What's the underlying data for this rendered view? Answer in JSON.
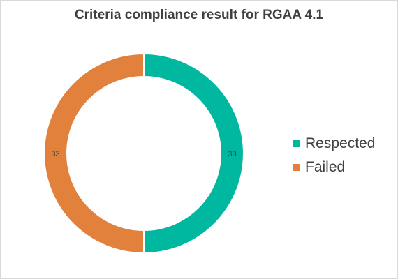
{
  "chart_data": {
    "type": "pie",
    "variant": "doughnut",
    "title": "Criteria compliance result for RGAA 4.1",
    "categories": [
      "Respected",
      "Failed"
    ],
    "values": [
      33,
      33
    ],
    "colors": [
      "#00B7A0",
      "#E2813C"
    ],
    "data_labels": [
      "33",
      "33"
    ],
    "legend_position": "right"
  }
}
